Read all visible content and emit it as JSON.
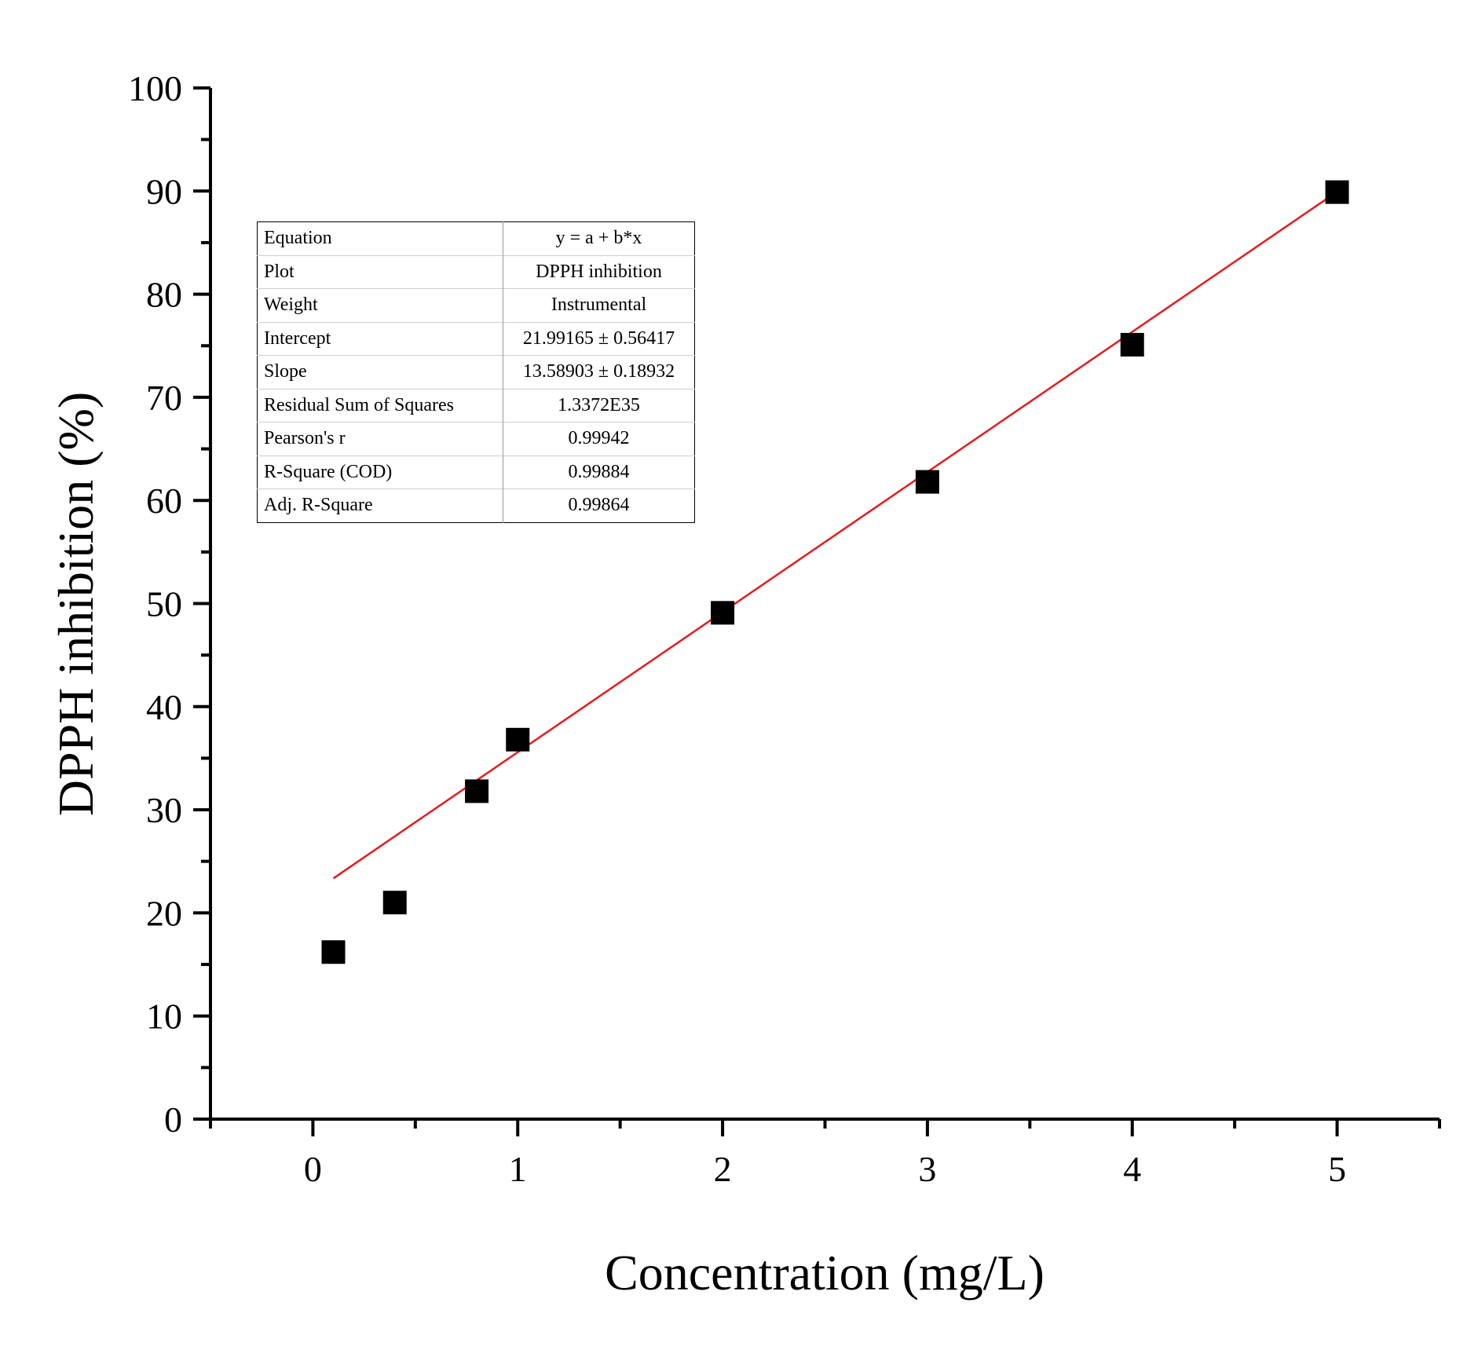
{
  "chart_data": {
    "type": "scatter",
    "xlabel": "Concentration (mg/L)",
    "ylabel": "DPPH inhibition (%)",
    "xlim": [
      -0.5,
      5.5
    ],
    "ylim": [
      0,
      100
    ],
    "x_ticks": [
      0,
      1,
      2,
      3,
      4,
      5
    ],
    "x_tick_labels": [
      "0",
      "1",
      "2",
      "3",
      "4",
      "5"
    ],
    "y_ticks": [
      0,
      10,
      20,
      30,
      40,
      50,
      60,
      70,
      80,
      90,
      100
    ],
    "y_tick_labels": [
      "0",
      "10",
      "20",
      "30",
      "40",
      "50",
      "60",
      "70",
      "80",
      "90",
      "100"
    ],
    "series": [
      {
        "name": "DPPH inhibition",
        "marker": "square",
        "color": "#000000",
        "points": [
          {
            "x": 0.1,
            "y": 16.2
          },
          {
            "x": 0.4,
            "y": 21.0
          },
          {
            "x": 0.8,
            "y": 31.8
          },
          {
            "x": 1.0,
            "y": 36.8
          },
          {
            "x": 2.0,
            "y": 49.1
          },
          {
            "x": 3.0,
            "y": 61.8
          },
          {
            "x": 4.0,
            "y": 75.1
          },
          {
            "x": 5.0,
            "y": 89.9
          }
        ]
      }
    ],
    "fit": {
      "type": "linear",
      "color": "#e8191e",
      "intercept": 21.99165,
      "slope": 13.58903,
      "x_range": [
        0.1,
        5.0
      ]
    },
    "stats_table": [
      {
        "key": "Equation",
        "value": "y = a + b*x"
      },
      {
        "key": "Plot",
        "value": "DPPH inhibition"
      },
      {
        "key": "Weight",
        "value": "Instrumental"
      },
      {
        "key": "Intercept",
        "value": "21.99165 ± 0.56417"
      },
      {
        "key": "Slope",
        "value": "13.58903 ± 0.18932"
      },
      {
        "key": "Residual Sum of Squares",
        "value": "1.3372E35"
      },
      {
        "key": "Pearson's r",
        "value": "0.99942"
      },
      {
        "key": "R-Square (COD)",
        "value": "0.99884"
      },
      {
        "key": "Adj. R-Square",
        "value": "0.99864"
      }
    ]
  }
}
